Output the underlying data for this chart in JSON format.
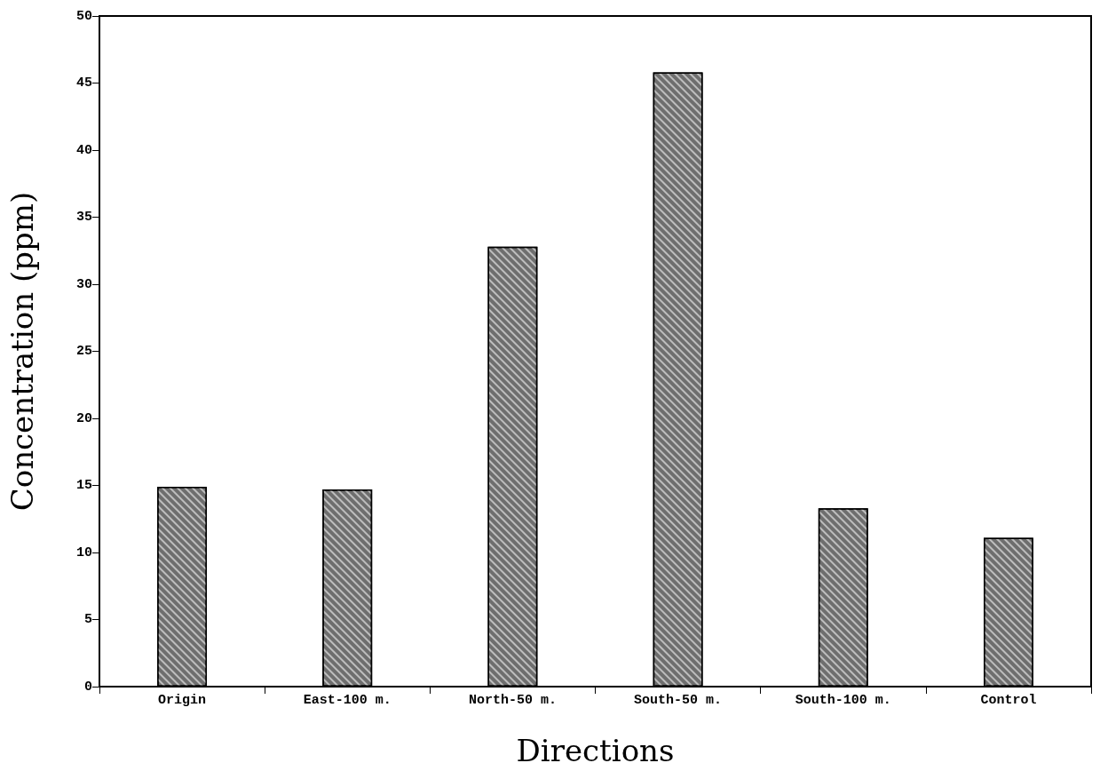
{
  "chart_data": {
    "type": "bar",
    "xlabel": "Directions",
    "ylabel": "Concentration (ppm)",
    "categories": [
      "Origin",
      "East-100 m.",
      "North-50 m.",
      "South-50 m.",
      "South-100 m.",
      "Control"
    ],
    "values": [
      14.9,
      14.7,
      32.8,
      45.8,
      13.3,
      11.1
    ],
    "color": "#6e6e6e",
    "ylim": [
      0,
      50
    ],
    "yticks": [
      0,
      5,
      10,
      15,
      20,
      25,
      30,
      35,
      40,
      45,
      50
    ],
    "grid": false
  }
}
